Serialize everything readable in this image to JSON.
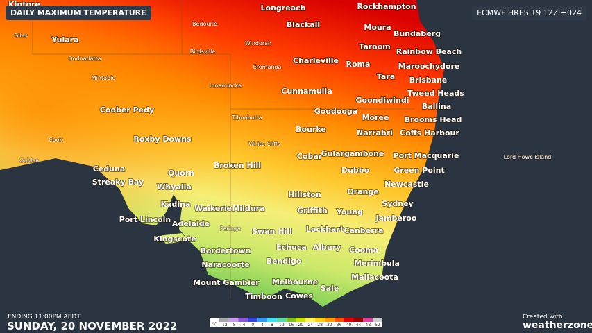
{
  "header": {
    "title": "DAILY MAXIMUM TEMPERATURE",
    "model": "ECMWF HRES 19 12Z +024"
  },
  "footer": {
    "ending": "ENDING 11:00PM AEDT",
    "date": "SUNDAY, 20 NOVEMBER 2022",
    "credit": "Created with",
    "brand": "weatherzone"
  },
  "towns": [
    "Kintore",
    "Longreach",
    "Rockhampton",
    "Blackall",
    "Moura",
    "Bundaberg",
    "Yulara",
    "Taroom",
    "Rainbow Beach",
    "Charleville",
    "Roma",
    "Maroochydore",
    "Tara",
    "Brisbane",
    "Cunnamulla",
    "Tweed Heads",
    "Goondiwindi",
    "Ballina",
    "Goodooga",
    "Moree",
    "Brooms Head",
    "Coober Pedy",
    "Bourke",
    "Narrabri",
    "Coffs Harbour",
    "Roxby Downs",
    "Cobar",
    "Gulargambone",
    "Port Macquarie",
    "Broken Hill",
    "Ceduna",
    "Dubbo",
    "Green Point",
    "Quorn",
    "Streaky Bay",
    "Whyalla",
    "Newcastle",
    "Orange",
    "Hillston",
    "Kadina",
    "Sydney",
    "Waikerie",
    "Mildura",
    "Griffith",
    "Young",
    "Port Lincoln",
    "Jamberoo",
    "Adelaide",
    "Lockhart",
    "Canberra",
    "Swan Hill",
    "Kingscote",
    "Echuca",
    "Albury",
    "Cooma",
    "Bordertown",
    "Bendigo",
    "Merimbula",
    "Naracoorte",
    "Mallacoota",
    "Mount Gambier",
    "Melbourne",
    "Sale",
    "Timboon",
    "Cowes"
  ],
  "localities": [
    "Giles",
    "Bedourie",
    "Windorah",
    "Birdsville",
    "Oodnadatta",
    "Eromanga",
    "Mintabie",
    "Innamincka",
    "Tibooburra",
    "Cook",
    "White Cliffs",
    "Ooldea",
    "Paringa",
    "Lord Howe Island"
  ],
  "legend": {
    "unit": "°C",
    "items": [
      {
        "value": -12,
        "color": "#a8a8a8"
      },
      {
        "value": -8,
        "color": "#c69ae6"
      },
      {
        "value": -4,
        "color": "#8a5ad6"
      },
      {
        "value": 0,
        "color": "#3446e0"
      },
      {
        "value": 4,
        "color": "#2f9cf0"
      },
      {
        "value": 8,
        "color": "#3fe0f0"
      },
      {
        "value": 12,
        "color": "#56dca6"
      },
      {
        "value": 16,
        "color": "#7cc21e"
      },
      {
        "value": 20,
        "color": "#c8e400"
      },
      {
        "value": 24,
        "color": "#fff25a"
      },
      {
        "value": 28,
        "color": "#ffcf10"
      },
      {
        "value": 32,
        "color": "#ff9c00"
      },
      {
        "value": 36,
        "color": "#ff5200"
      },
      {
        "value": 40,
        "color": "#e00000"
      },
      {
        "value": 44,
        "color": "#a00000"
      },
      {
        "value": 48,
        "color": "#e040a0"
      },
      {
        "value": 52,
        "color": "#cfcfcf"
      }
    ]
  }
}
